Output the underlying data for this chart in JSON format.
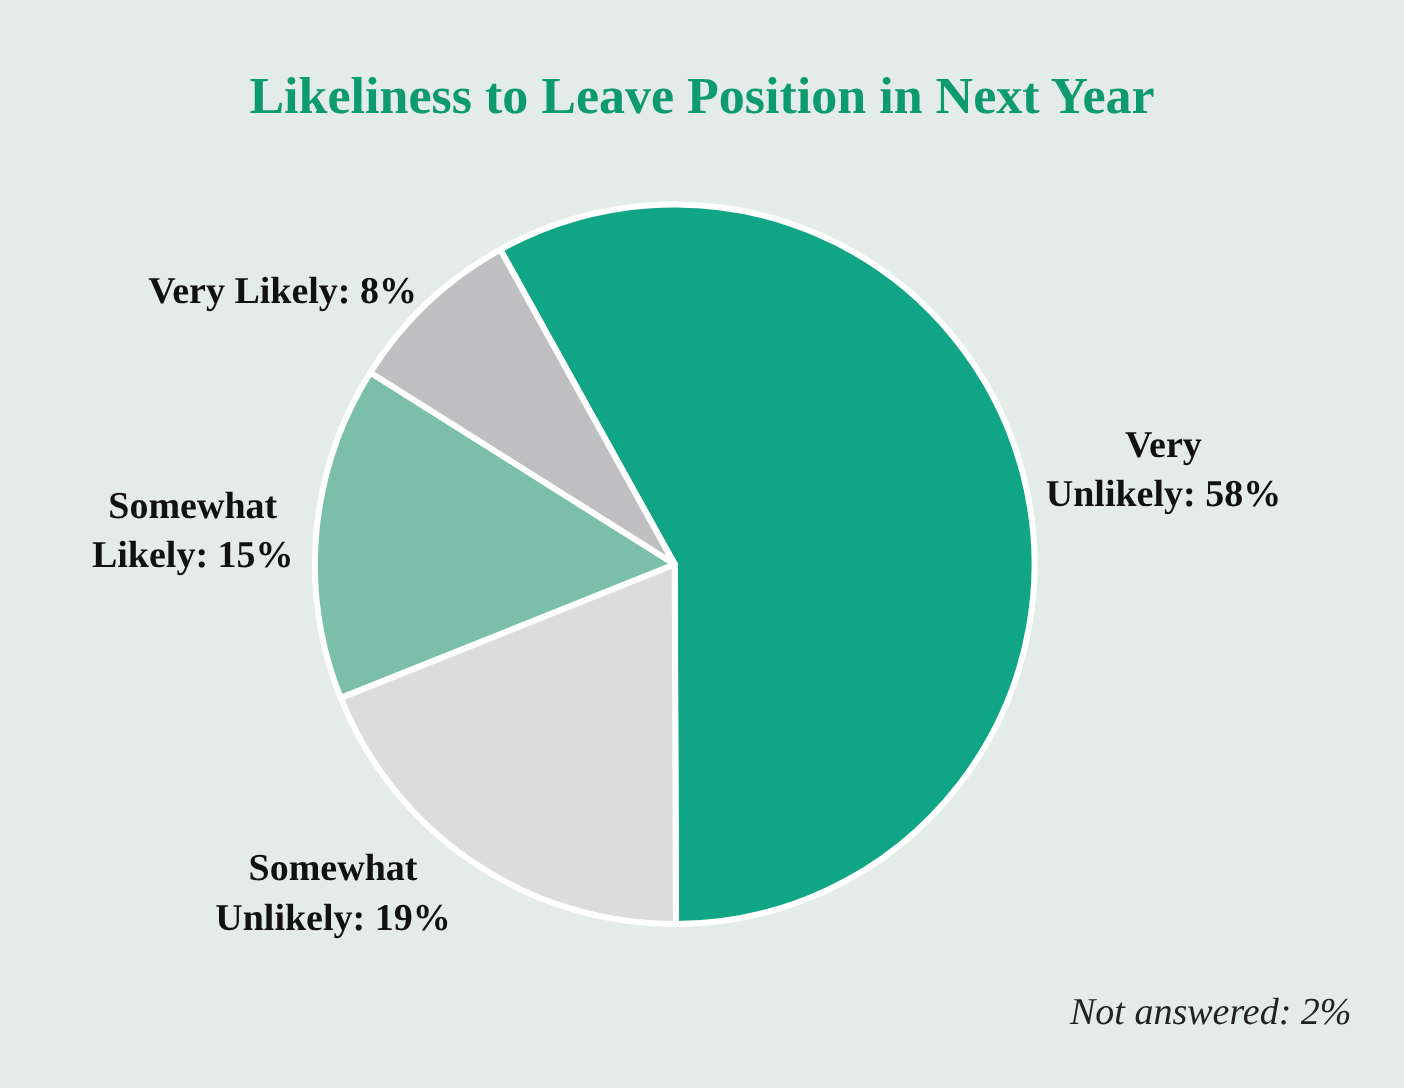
{
  "chart_data": {
    "type": "pie",
    "title": "Likeliness to Leave Position in Next Year",
    "categories": [
      "Very Unlikely",
      "Somewhat Unlikely",
      "Somewhat Likely",
      "Very Likely"
    ],
    "values": [
      58,
      19,
      15,
      8
    ],
    "value_labels": [
      "58%",
      "19%",
      "15%",
      "8%"
    ],
    "colors": [
      "#10a585",
      "#dcdcdc",
      "#7bbfab",
      "#bfbfc1"
    ],
    "legend": false,
    "annotations": [
      "Not answered: 2%"
    ]
  }
}
